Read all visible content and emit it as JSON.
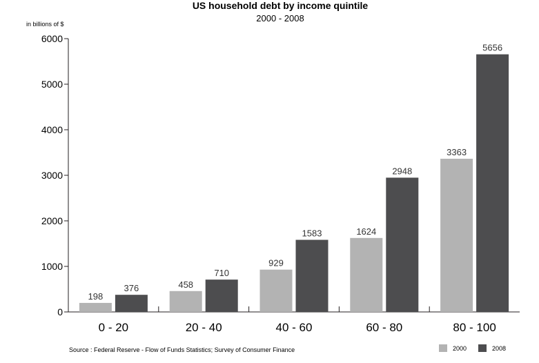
{
  "chart_data": {
    "type": "bar",
    "title": "US household debt by income quintile",
    "subtitle": "2000 - 2008",
    "ylabel": "in billions of $",
    "xlabel": "",
    "categories": [
      "0 - 20",
      "20 - 40",
      "40 - 60",
      "60 - 80",
      "80 - 100"
    ],
    "series": [
      {
        "name": "2000",
        "color": "#b3b3b3",
        "values": [
          198,
          458,
          929,
          1624,
          3363
        ]
      },
      {
        "name": "2008",
        "color": "#4d4d4f",
        "values": [
          376,
          710,
          1583,
          2948,
          5656
        ]
      }
    ],
    "ylim": [
      0,
      6000
    ],
    "yticks": [
      "0",
      "1000",
      "2000",
      "3000",
      "4000",
      "5000",
      "6000"
    ],
    "grid": false,
    "legend_position": "bottom-right",
    "source": "Source : Federal Reserve - Flow of Funds Statistics; Survey of Consumer Finance"
  }
}
